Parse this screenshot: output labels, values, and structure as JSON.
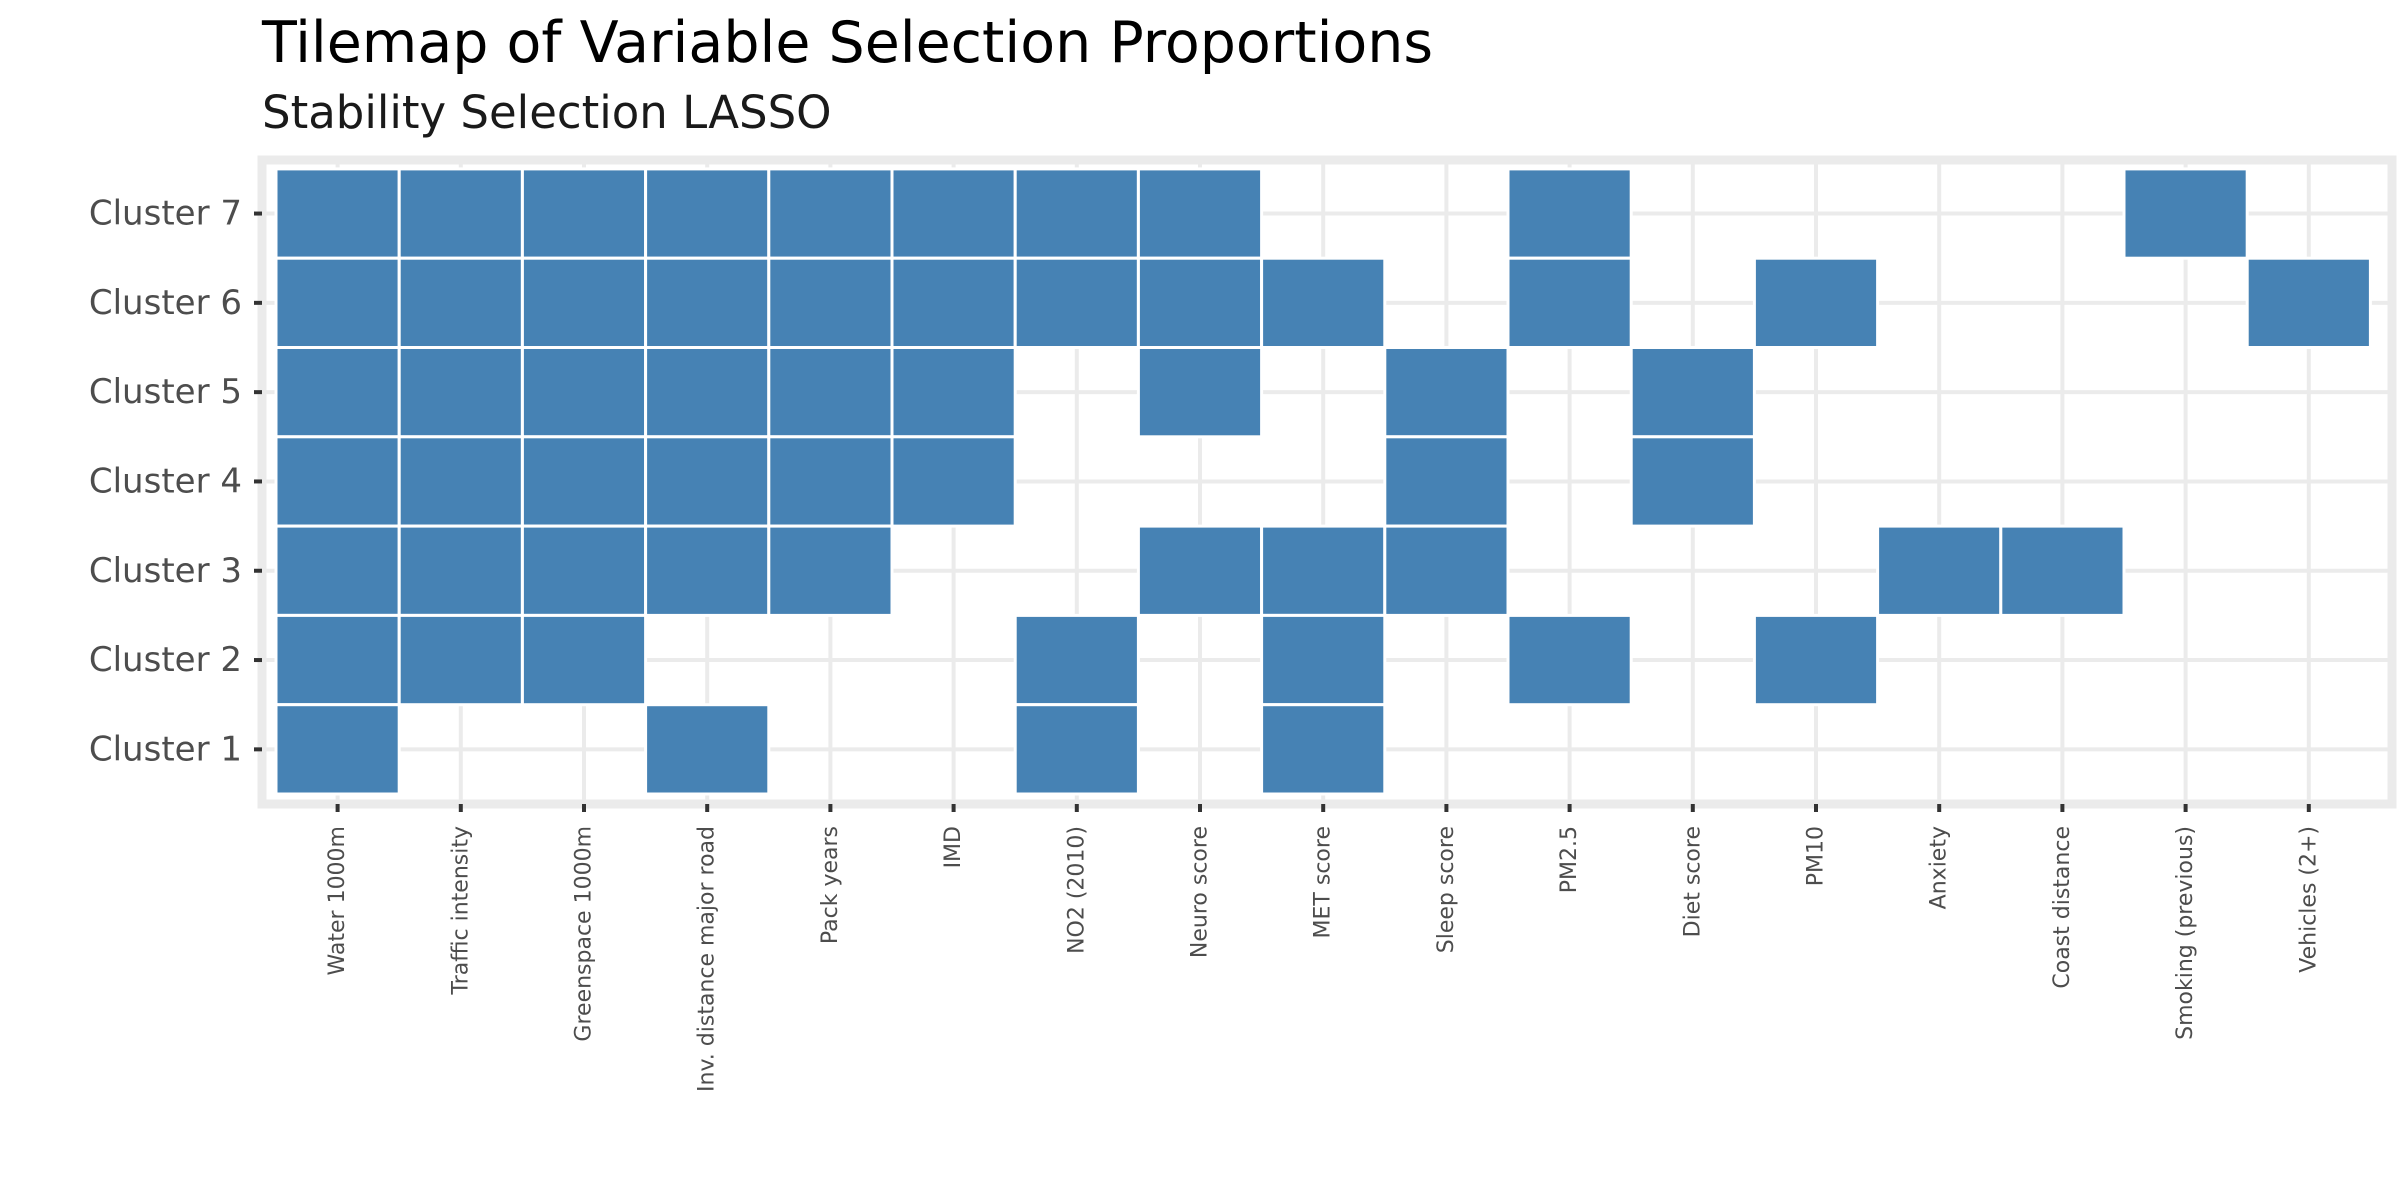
{
  "chart_data": {
    "type": "heatmap",
    "title": "Tilemap of Variable Selection Proportions",
    "subtitle": "Stability Selection LASSO",
    "xlabel": "",
    "ylabel": "",
    "legend": "none",
    "grid": true,
    "tile_color": "#4682B4",
    "panel_background": "#ffffff",
    "panel_border_color": "#ebebeb",
    "x": [
      "Water 1000m",
      "Traffic intensity",
      "Greenspace 1000m",
      "Inv. distance major road",
      "Pack years",
      "IMD",
      "NO2 (2010)",
      "Neuro score",
      "MET score",
      "Sleep score",
      "PM2.5",
      "Diet score",
      "PM10",
      "Anxiety",
      "Coast distance",
      "Smoking (previous)",
      "Vehicles (2+)"
    ],
    "y": [
      "Cluster 1",
      "Cluster 2",
      "Cluster 3",
      "Cluster 4",
      "Cluster 5",
      "Cluster 6",
      "Cluster 7"
    ],
    "tiles": [
      {
        "y": "Cluster 7",
        "x": [
          "Water 1000m",
          "Traffic intensity",
          "Greenspace 1000m",
          "Inv. distance major road",
          "Pack years",
          "IMD",
          "NO2 (2010)",
          "Neuro score",
          "PM2.5",
          "Smoking (previous)"
        ]
      },
      {
        "y": "Cluster 6",
        "x": [
          "Water 1000m",
          "Traffic intensity",
          "Greenspace 1000m",
          "Inv. distance major road",
          "Pack years",
          "IMD",
          "NO2 (2010)",
          "Neuro score",
          "MET score",
          "PM2.5",
          "PM10",
          "Vehicles (2+)"
        ]
      },
      {
        "y": "Cluster 5",
        "x": [
          "Water 1000m",
          "Traffic intensity",
          "Greenspace 1000m",
          "Inv. distance major road",
          "Pack years",
          "IMD",
          "Neuro score",
          "Sleep score",
          "Diet score"
        ]
      },
      {
        "y": "Cluster 4",
        "x": [
          "Water 1000m",
          "Traffic intensity",
          "Greenspace 1000m",
          "Inv. distance major road",
          "Pack years",
          "IMD",
          "Sleep score",
          "Diet score"
        ]
      },
      {
        "y": "Cluster 3",
        "x": [
          "Water 1000m",
          "Traffic intensity",
          "Greenspace 1000m",
          "Inv. distance major road",
          "Pack years",
          "Neuro score",
          "MET score",
          "Sleep score",
          "Anxiety",
          "Coast distance"
        ]
      },
      {
        "y": "Cluster 2",
        "x": [
          "Water 1000m",
          "Traffic intensity",
          "Greenspace 1000m",
          "NO2 (2010)",
          "MET score",
          "PM2.5",
          "PM10"
        ]
      },
      {
        "y": "Cluster 1",
        "x": [
          "Water 1000m",
          "Inv. distance major road",
          "NO2 (2010)",
          "MET score"
        ]
      }
    ]
  }
}
